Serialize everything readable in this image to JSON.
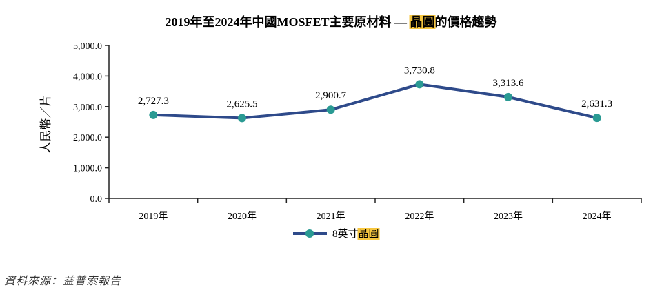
{
  "chart_data": {
    "type": "line",
    "title": {
      "prefix": "2019年至2024年中國MOSFET主要原材料 — ",
      "highlight": "晶圓",
      "suffix": "的價格趨勢"
    },
    "ylabel": "人民幣／片",
    "xlabel": "",
    "categories": [
      "2019年",
      "2020年",
      "2021年",
      "2022年",
      "2023年",
      "2024年"
    ],
    "series": [
      {
        "name_prefix": "8英寸",
        "name_highlight": "晶圓",
        "values": [
          2727.3,
          2625.5,
          2900.7,
          3730.8,
          3313.6,
          2631.3
        ],
        "value_labels": [
          "2,727.3",
          "2,625.5",
          "2,900.7",
          "3,730.8",
          "3,313.6",
          "2,631.3"
        ]
      }
    ],
    "ylim": [
      0,
      5000
    ],
    "yticks": [
      0,
      1000,
      2000,
      3000,
      4000,
      5000
    ],
    "ytick_labels": [
      "0.0",
      "1,000.0",
      "2,000.0",
      "3,000.0",
      "4,000.0",
      "5,000.0"
    ],
    "grid": false,
    "legend_position": "bottom-center",
    "colors": {
      "line": "#2e4a8a",
      "marker": "#2a9a93",
      "highlight": "#f6c63f"
    }
  },
  "source": "資料來源：益普索報告"
}
